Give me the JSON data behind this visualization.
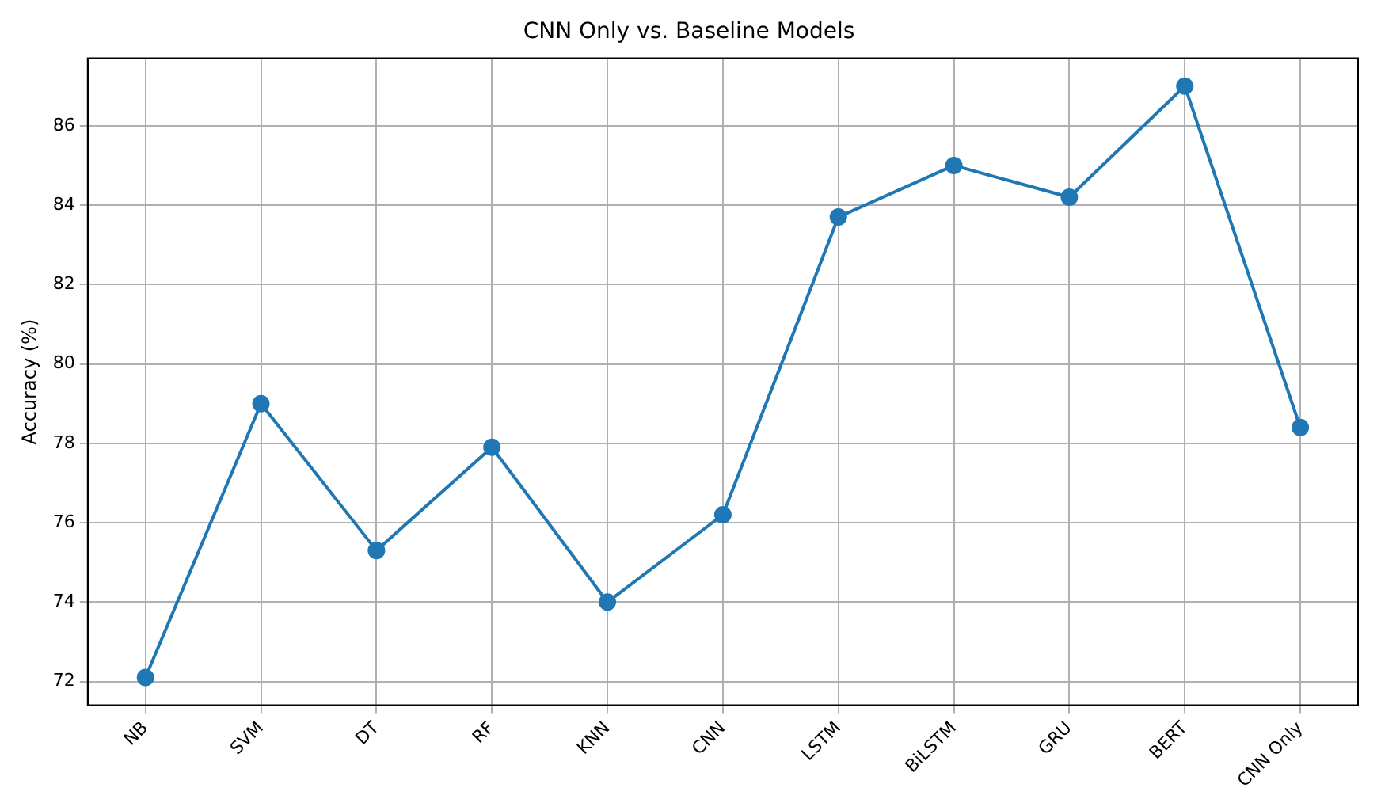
{
  "chart_data": {
    "type": "line",
    "title": "CNN Only vs. Baseline Models",
    "ylabel": "Accuracy (%)",
    "categories": [
      "NB",
      "SVM",
      "DT",
      "RF",
      "KNN",
      "CNN",
      "LSTM",
      "BiLSTM",
      "GRU",
      "BERT",
      "CNN Only"
    ],
    "series": [
      {
        "color": "#1f77b4",
        "values": [
          72.1,
          79.0,
          75.3,
          77.9,
          74.0,
          76.2,
          83.7,
          85.0,
          84.2,
          87.0,
          78.4
        ]
      }
    ],
    "ylim": [
      71.4,
      87.7
    ],
    "yticks": [
      72,
      74,
      76,
      78,
      80,
      82,
      84,
      86
    ],
    "grid": true,
    "legend": false,
    "marker": "circle",
    "line_style": "solid"
  }
}
